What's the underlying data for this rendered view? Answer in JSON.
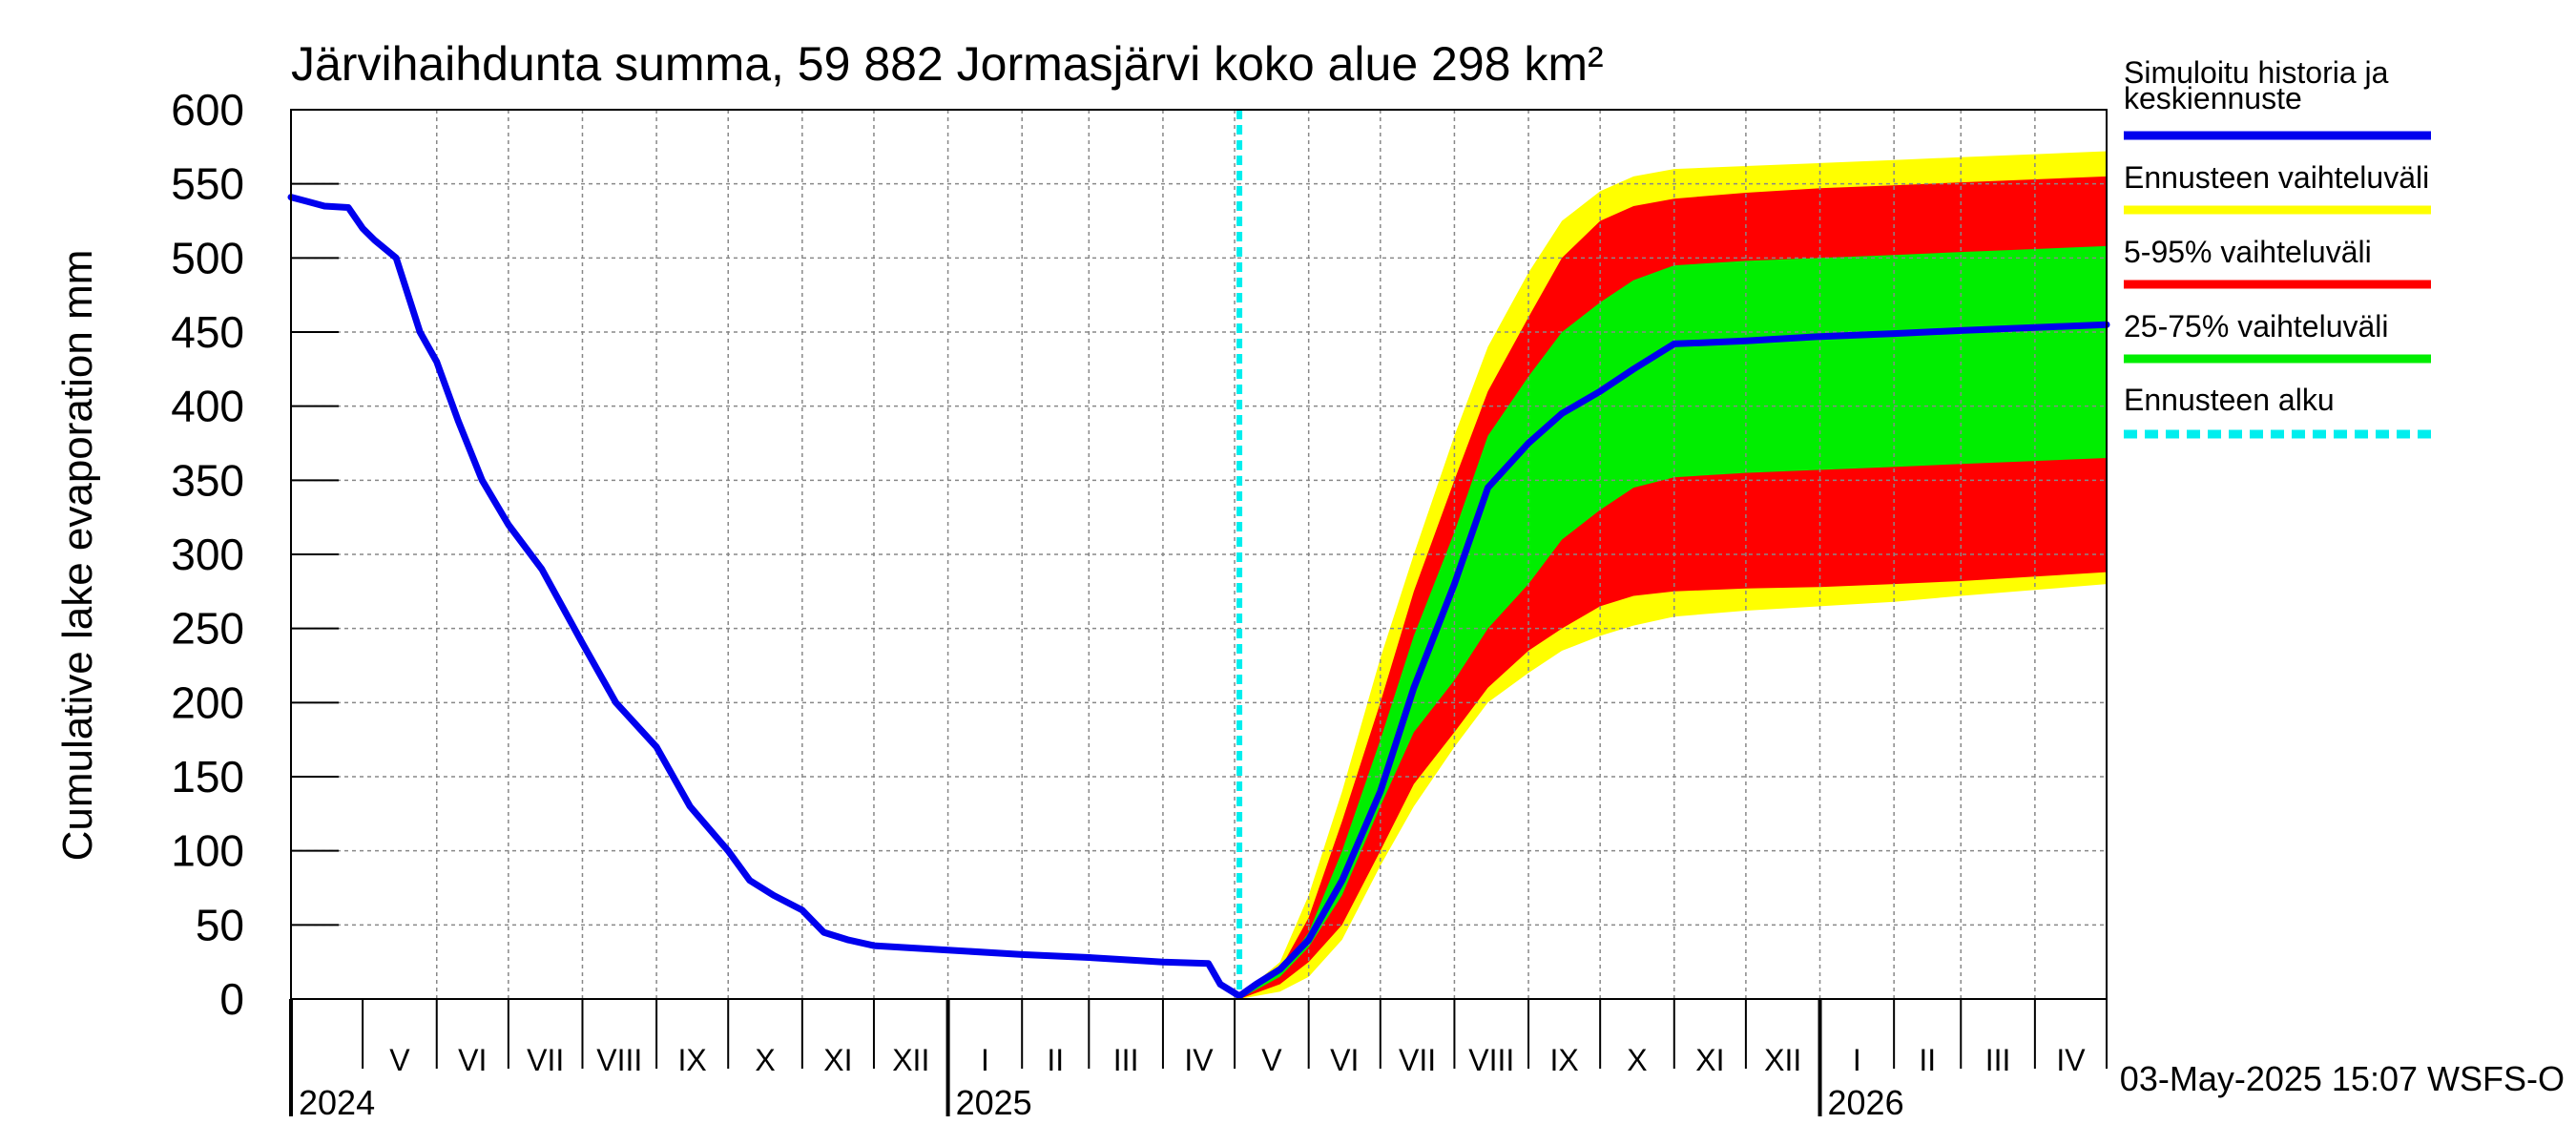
{
  "chart_data": {
    "type": "area",
    "title": "Järvihaihdunta summa, 59 882 Jormasjärvi koko alue 298 km²",
    "ylabel": "Cumulative lake evaporation   mm",
    "ylim": [
      0,
      600
    ],
    "yticks": [
      "0",
      "50",
      "100",
      "150",
      "200",
      "250",
      "300",
      "350",
      "400",
      "450",
      "500",
      "550",
      "600"
    ],
    "xlim": [
      "2024-04-01",
      "2026-05-01"
    ],
    "months": [
      {
        "label": "V",
        "start": "2024-05-01",
        "end": "2024-06-01"
      },
      {
        "label": "VI",
        "start": "2024-06-01",
        "end": "2024-07-01"
      },
      {
        "label": "VII",
        "start": "2024-07-01",
        "end": "2024-08-01"
      },
      {
        "label": "VIII",
        "start": "2024-08-01",
        "end": "2024-09-01"
      },
      {
        "label": "IX",
        "start": "2024-09-01",
        "end": "2024-10-01"
      },
      {
        "label": "X",
        "start": "2024-10-01",
        "end": "2024-11-01"
      },
      {
        "label": "XI",
        "start": "2024-11-01",
        "end": "2024-12-01"
      },
      {
        "label": "XII",
        "start": "2024-12-01",
        "end": "2025-01-01"
      },
      {
        "label": "I",
        "start": "2025-01-01",
        "end": "2025-02-01"
      },
      {
        "label": "II",
        "start": "2025-02-01",
        "end": "2025-03-01"
      },
      {
        "label": "III",
        "start": "2025-03-01",
        "end": "2025-04-01"
      },
      {
        "label": "IV",
        "start": "2025-04-01",
        "end": "2025-05-01"
      },
      {
        "label": "V",
        "start": "2025-05-01",
        "end": "2025-06-01"
      },
      {
        "label": "VI",
        "start": "2025-06-01",
        "end": "2025-07-01"
      },
      {
        "label": "VII",
        "start": "2025-07-01",
        "end": "2025-08-01"
      },
      {
        "label": "VIII",
        "start": "2025-08-01",
        "end": "2025-09-01"
      },
      {
        "label": "IX",
        "start": "2025-09-01",
        "end": "2025-10-01"
      },
      {
        "label": "X",
        "start": "2025-10-01",
        "end": "2025-11-01"
      },
      {
        "label": "XI",
        "start": "2025-11-01",
        "end": "2025-12-01"
      },
      {
        "label": "XII",
        "start": "2025-12-01",
        "end": "2026-01-01"
      },
      {
        "label": "I",
        "start": "2026-01-01",
        "end": "2026-02-01"
      },
      {
        "label": "II",
        "start": "2026-02-01",
        "end": "2026-03-01"
      },
      {
        "label": "III",
        "start": "2026-03-01",
        "end": "2026-04-01"
      },
      {
        "label": "IV",
        "start": "2026-04-01",
        "end": "2026-05-01"
      }
    ],
    "years": [
      {
        "label": "2024",
        "date": "2024-04-01"
      },
      {
        "label": "2025",
        "date": "2025-01-01"
      },
      {
        "label": "2026",
        "date": "2026-01-01"
      }
    ],
    "forecast_start": "2025-05-03",
    "grid": true,
    "legend_position": "right",
    "legend": [
      {
        "label": "Simuloitu historia ja keskiennuste",
        "color": "#0000ee",
        "style": "solid"
      },
      {
        "label": "Ennusteen vaihteluväli",
        "color": "#ffff00",
        "style": "solid"
      },
      {
        "label": "5-95% vaihteluväli",
        "color": "#ff0000",
        "style": "solid"
      },
      {
        "label": "25-75% vaihteluväli",
        "color": "#00ee00",
        "style": "solid"
      },
      {
        "label": "Ennusteen alku",
        "color": "#00eeee",
        "style": "dashed"
      }
    ],
    "bands": [
      {
        "name": "Ennusteen vaihteluväli",
        "color": "#ffff00",
        "x": [
          "2025-05-03",
          "2025-05-20",
          "2025-06-01",
          "2025-06-15",
          "2025-07-01",
          "2025-07-15",
          "2025-08-01",
          "2025-08-15",
          "2025-09-01",
          "2025-09-15",
          "2025-10-01",
          "2025-10-15",
          "2025-11-01",
          "2025-12-01",
          "2026-01-01",
          "2026-02-01",
          "2026-03-01",
          "2026-04-01",
          "2026-05-01"
        ],
        "lower": [
          0,
          5,
          15,
          40,
          90,
          130,
          170,
          200,
          220,
          235,
          245,
          252,
          258,
          262,
          265,
          268,
          272,
          276,
          280
        ],
        "upper": [
          2,
          25,
          70,
          140,
          230,
          300,
          380,
          440,
          490,
          525,
          545,
          555,
          560,
          562,
          564,
          566,
          568,
          570,
          572
        ]
      },
      {
        "name": "5-95% vaihteluväli",
        "color": "#ff0000",
        "x": [
          "2025-05-03",
          "2025-05-20",
          "2025-06-01",
          "2025-06-15",
          "2025-07-01",
          "2025-07-15",
          "2025-08-01",
          "2025-08-15",
          "2025-09-01",
          "2025-09-15",
          "2025-10-01",
          "2025-10-15",
          "2025-11-01",
          "2025-12-01",
          "2026-01-01",
          "2026-02-01",
          "2026-03-01",
          "2026-04-01",
          "2026-05-01"
        ],
        "lower": [
          0,
          10,
          25,
          50,
          100,
          145,
          180,
          210,
          235,
          250,
          265,
          272,
          275,
          277,
          278,
          280,
          282,
          285,
          288
        ],
        "upper": [
          1,
          20,
          55,
          120,
          200,
          275,
          350,
          410,
          460,
          500,
          525,
          535,
          540,
          544,
          547,
          549,
          551,
          553,
          555
        ]
      },
      {
        "name": "25-75% vaihteluväli",
        "color": "#00ee00",
        "x": [
          "2025-05-03",
          "2025-05-20",
          "2025-06-01",
          "2025-06-15",
          "2025-07-01",
          "2025-07-15",
          "2025-08-01",
          "2025-08-15",
          "2025-09-01",
          "2025-09-15",
          "2025-10-01",
          "2025-10-15",
          "2025-11-01",
          "2025-12-01",
          "2026-01-01",
          "2026-02-01",
          "2026-03-01",
          "2026-04-01",
          "2026-05-01"
        ],
        "lower": [
          0,
          15,
          35,
          70,
          130,
          180,
          215,
          250,
          280,
          310,
          330,
          345,
          352,
          355,
          357,
          359,
          361,
          363,
          365
        ],
        "upper": [
          1,
          18,
          45,
          100,
          175,
          245,
          315,
          380,
          420,
          450,
          470,
          485,
          495,
          498,
          500,
          502,
          504,
          506,
          508
        ]
      }
    ],
    "series": [
      {
        "name": "Simuloitu historia ja keskiennuste",
        "color": "#0000ee",
        "x": [
          "2024-04-01",
          "2024-04-08",
          "2024-04-15",
          "2024-04-25",
          "2024-05-01",
          "2024-05-06",
          "2024-05-15",
          "2024-05-25",
          "2024-06-01",
          "2024-06-10",
          "2024-06-20",
          "2024-07-01",
          "2024-07-15",
          "2024-08-01",
          "2024-08-15",
          "2024-09-01",
          "2024-09-15",
          "2024-10-01",
          "2024-10-10",
          "2024-10-20",
          "2024-11-01",
          "2024-11-10",
          "2024-11-20",
          "2024-12-01",
          "2025-01-01",
          "2025-02-01",
          "2025-03-01",
          "2025-04-01",
          "2025-04-20",
          "2025-04-25",
          "2025-05-03",
          "2025-05-10",
          "2025-05-20",
          "2025-06-01",
          "2025-06-15",
          "2025-07-01",
          "2025-07-15",
          "2025-08-01",
          "2025-08-15",
          "2025-09-01",
          "2025-09-15",
          "2025-10-01",
          "2025-10-15",
          "2025-11-01",
          "2025-12-01",
          "2026-01-01",
          "2026-02-01",
          "2026-03-01",
          "2026-04-01",
          "2026-05-01"
        ],
        "y": [
          541,
          538,
          535,
          534,
          520,
          512,
          500,
          450,
          430,
          390,
          350,
          320,
          290,
          240,
          200,
          170,
          130,
          100,
          80,
          70,
          60,
          45,
          40,
          36,
          33,
          30,
          28,
          25,
          24,
          10,
          2,
          10,
          20,
          40,
          80,
          140,
          210,
          280,
          345,
          375,
          395,
          410,
          425,
          442,
          444,
          447,
          449,
          451,
          453,
          455
        ]
      }
    ]
  },
  "footer": {
    "timestamp": "03-May-2025 15:07 WSFS-O"
  }
}
